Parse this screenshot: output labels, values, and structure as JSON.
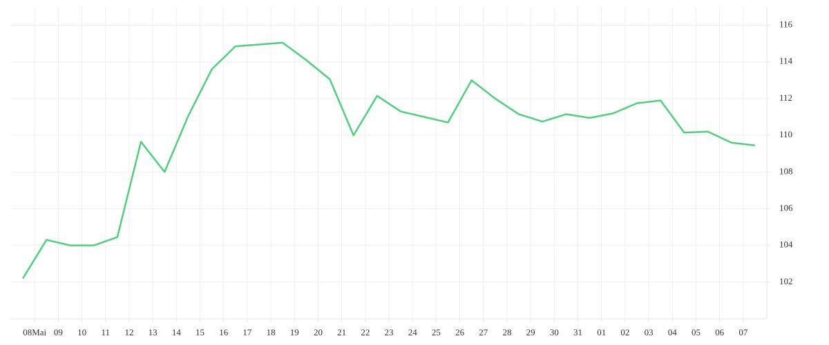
{
  "chart_data": {
    "type": "line",
    "x": [
      0,
      1,
      2,
      3,
      4,
      5,
      6,
      7,
      8,
      9,
      10,
      11,
      12,
      13,
      14,
      15,
      16,
      17,
      18,
      19,
      20,
      21,
      22,
      23,
      24,
      25,
      26,
      27,
      28,
      29,
      30,
      31
    ],
    "series": [
      {
        "color": "#4cd07d",
        "values": [
          102.2,
          104.3,
          104.0,
          104.0,
          104.45,
          109.65,
          108.0,
          111.05,
          113.6,
          114.85,
          114.95,
          115.05,
          114.1,
          113.05,
          110.0,
          112.15,
          111.3,
          111.0,
          110.7,
          113.0,
          112.0,
          111.15,
          110.75,
          111.15,
          110.95,
          111.2,
          111.75,
          111.9,
          110.15,
          110.2,
          109.6,
          109.45
        ]
      }
    ],
    "xlim": [
      -0.5,
      31.5
    ],
    "xticks": [
      {
        "value": 0.5,
        "label": "08Mai"
      },
      {
        "value": 1.5,
        "label": "09"
      },
      {
        "value": 2.5,
        "label": "10"
      },
      {
        "value": 3.5,
        "label": "11"
      },
      {
        "value": 4.5,
        "label": "12"
      },
      {
        "value": 5.5,
        "label": "13"
      },
      {
        "value": 6.5,
        "label": "14"
      },
      {
        "value": 7.5,
        "label": "15"
      },
      {
        "value": 8.5,
        "label": "16"
      },
      {
        "value": 9.5,
        "label": "17"
      },
      {
        "value": 10.5,
        "label": "18"
      },
      {
        "value": 11.5,
        "label": "19"
      },
      {
        "value": 12.5,
        "label": "20"
      },
      {
        "value": 13.5,
        "label": "21"
      },
      {
        "value": 14.5,
        "label": "22"
      },
      {
        "value": 15.5,
        "label": "23"
      },
      {
        "value": 16.5,
        "label": "24"
      },
      {
        "value": 17.5,
        "label": "25"
      },
      {
        "value": 18.5,
        "label": "26"
      },
      {
        "value": 19.5,
        "label": "27"
      },
      {
        "value": 20.5,
        "label": "28"
      },
      {
        "value": 21.5,
        "label": "29"
      },
      {
        "value": 22.5,
        "label": "30"
      },
      {
        "value": 23.5,
        "label": "31"
      },
      {
        "value": 24.5,
        "label": "01"
      },
      {
        "value": 25.5,
        "label": "02"
      },
      {
        "value": 26.5,
        "label": "03"
      },
      {
        "value": 27.5,
        "label": "04"
      },
      {
        "value": 28.5,
        "label": "05"
      },
      {
        "value": 29.5,
        "label": "06"
      },
      {
        "value": 30.5,
        "label": "07"
      }
    ],
    "ylim": [
      100,
      117
    ],
    "yticks": [
      102,
      104,
      106,
      108,
      110,
      112,
      114,
      116
    ],
    "grid": true,
    "y_axis_side": "right"
  }
}
